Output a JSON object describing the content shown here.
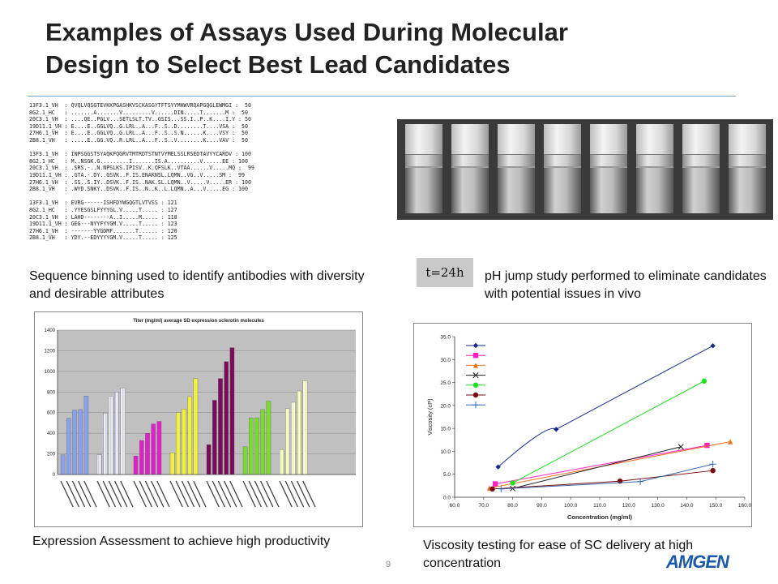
{
  "title_line1": "Examples of Assays Used During Molecular",
  "title_line2": "Design to Select Best Lead Candidates",
  "captions": {
    "sequence": "Sequence binning used to identify antibodies with diversity and desirable attributes",
    "ph": "pH jump study performed to eliminate candidates with potential issues in vivo",
    "expression": "Expression Assessment to achieve high productivity",
    "viscosity": "Viscosity testing for ease of SC delivery at high concentration"
  },
  "badge": "t=24h",
  "page_number": "9",
  "logo": "AMGEN",
  "sequence_lines": [
    "13F3.1_VH  : QVQLVQSGTEVKKPGASHKVSCKASGYTFTSYYMHWVRQAPGQGLEWMGI :  50",
    "8G2.1_HC   : .......A.......V.........V......DIN.....T.......M :  50",
    "20C3.1_VH  : ....QE..PGLV...SETLSLT.TV..GSIS...SS.I..P..K....I.Y : 50",
    "19D11.1_VH : E....E..GGLVQ..G.LRL..A...F..S..D........T....VSA :  50",
    "27H6.1_VH  : E....E..GGLVQ..G.LRL..A...F..S..S.N......K....VSY :  50",
    "2B8.1_VH   : .....E..GG.VQ..R.LRL..A...F..S..V........K....VAV :  50",
    "",
    "13F3.1_VH  : INPSGGSTSYAQKFQGRVTMTRDTSTNTVYMELSSLRSEDTAVYYCARDV : 100",
    "8G2.1_HC   : M..NSGK.G.........I.......IS.A..........V......EE : 100",
    "20C3.1_VH  : .SRS.-..N.NPSLKS.IPISV..K.QFSLK..VTAA......V.....MQ :  99",
    "19D11.1_VH : .GTA.-.DY..GSVK..F.IS.ENAKNSL.LQMN..VG..V.....SM :  99",
    "27H6.1_VH  : .SS..S.IY..DSVK..F.IS..NAK.SL.LQMN..V.....V.....ER : 100",
    "2B8.1_VH   : .WYD.SNKY..DSVK..F.IS..N..K..L.LQMN..A...V.....EG : 100",
    "",
    "13F3.1_VH  : EVRG------ISHFDYWGQGTLVTVSS : 121",
    "8G2.1_HC   : .YYESGSLFYYYGL.V.....T..... : 127",
    "20C3.1_VH  : LAHD--------A..I.....M..... : 118",
    "19D11.1_VH : GEG---NYYFYYGM.V.....T..... : 123",
    "27H6.1_VH  : -------YYGDMF.......T...... : 120",
    "2B8.1_VH   : YDY.--EDYYYYGM.V.....T..... : 125"
  ],
  "chart_data": [
    {
      "type": "bar",
      "title": "Titer (mg/ml) average SD expression sclerotin molecules",
      "xlabel": "",
      "ylabel": "",
      "ylim": [
        0,
        1400
      ],
      "yticks": [
        0,
        200,
        400,
        600,
        800,
        1000,
        1200,
        1400
      ],
      "grid": true,
      "groups": [
        {
          "color": "#8aa0e8",
          "pattern": "solid",
          "values": [
            190,
            545,
            625,
            630,
            760
          ]
        },
        {
          "color": "#c8c8e8",
          "pattern": "stripe",
          "values": [
            190,
            595,
            760,
            800,
            840
          ]
        },
        {
          "color": "#e020c8",
          "pattern": "solid",
          "values": [
            180,
            330,
            400,
            490,
            515
          ]
        },
        {
          "color": "#f0f040",
          "pattern": "solid",
          "values": [
            210,
            600,
            635,
            755,
            930
          ]
        },
        {
          "color": "#7a0a5a",
          "pattern": "solid",
          "values": [
            290,
            720,
            930,
            1095,
            1230
          ]
        },
        {
          "color": "#7adc30",
          "pattern": "solid",
          "values": [
            270,
            550,
            550,
            630,
            710
          ]
        },
        {
          "color": "#e8f090",
          "pattern": "stripe",
          "values": [
            240,
            640,
            700,
            810,
            910
          ]
        }
      ]
    },
    {
      "type": "line",
      "title": "",
      "xlabel": "Concentration (mg/ml)",
      "ylabel": "Viscosity (cP)",
      "xlim": [
        60,
        160
      ],
      "ylim": [
        0,
        35
      ],
      "xticks": [
        "60.0",
        "70.0",
        "80.0",
        "90.0",
        "100.0",
        "110.0",
        "120.0",
        "130.0",
        "140.0",
        "150.0",
        "160.0"
      ],
      "yticks": [
        "0.0",
        "5.0",
        "10.0",
        "15.0",
        "20.0",
        "25.0",
        "30.0",
        "35.0"
      ],
      "legend": "top-left",
      "series": [
        {
          "color": "#1a2a8a",
          "marker": "diamond",
          "smooth": true,
          "points": [
            [
              75,
              6.6
            ],
            [
              95,
              14.8
            ],
            [
              149,
              33.0
            ]
          ]
        },
        {
          "color": "#ff20c0",
          "marker": "square",
          "points": [
            [
              74,
              2.9
            ],
            [
              147,
              11.3
            ]
          ]
        },
        {
          "color": "#f07020",
          "marker": "triangle",
          "points": [
            [
              72,
              2.0
            ],
            [
              155,
              12.1
            ]
          ]
        },
        {
          "color": "#202020",
          "marker": "x",
          "points": [
            [
              80,
              1.9
            ],
            [
              138,
              11.0
            ]
          ]
        },
        {
          "color": "#20e020",
          "marker": "circle",
          "points": [
            [
              80,
              3.1
            ],
            [
              146,
              25.3
            ]
          ]
        },
        {
          "color": "#7a0a10",
          "marker": "circle",
          "points": [
            [
              73,
              1.8
            ],
            [
              117,
              3.5
            ],
            [
              149,
              5.8
            ]
          ]
        },
        {
          "color": "#3a6ab0",
          "marker": "plus",
          "points": [
            [
              76,
              1.8
            ],
            [
              124,
              3.4
            ],
            [
              149,
              7.2
            ]
          ]
        }
      ]
    }
  ]
}
